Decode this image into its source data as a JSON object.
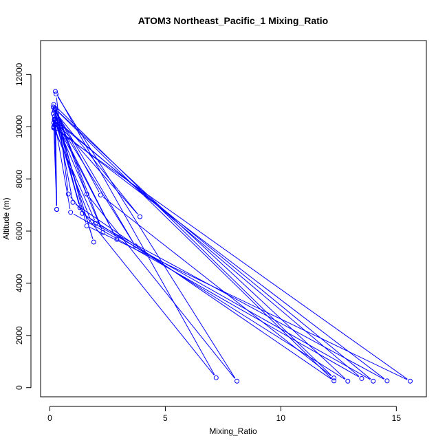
{
  "chart_data": {
    "type": "line",
    "title": "ATOM3 Northeast_Pacific_1 Mixing_Ratio",
    "xlabel": "Mixing_Ratio",
    "ylabel": "Altitude (m)",
    "xlim": [
      -0.4,
      16.3
    ],
    "ylim": [
      -350,
      13300
    ],
    "x_ticks": [
      0,
      5,
      10,
      15
    ],
    "y_ticks": [
      0,
      2000,
      4000,
      6000,
      8000,
      10000,
      12000
    ],
    "grid": false,
    "color": "#0000ff",
    "series": [
      {
        "x": [
          0.24,
          0.27,
          0.17,
          0.15,
          0.22,
          0.21,
          0.2,
          0.18,
          0.17,
          0.25,
          0.3,
          0.25,
          0.15,
          0.2,
          0.27,
          0.22,
          0.15,
          0.2,
          0.22,
          0.17,
          0.25,
          0.3,
          0.2,
          0.22,
          0.18,
          0.17,
          0.24
        ],
        "y": [
          11350,
          11250,
          10850,
          10750,
          10700,
          10300,
          10250,
          10000,
          9950,
          10700,
          10100,
          10300,
          10750,
          10600,
          10200,
          10650,
          10500,
          10400,
          10050,
          10000,
          10200,
          6830,
          10280,
          10100,
          9980,
          10150,
          10080
        ]
      },
      {
        "x": [
          7.2,
          8.1,
          12.3,
          12.3,
          12.9,
          13.5,
          14.0,
          14.6,
          15.6
        ],
        "y": [
          380,
          250,
          370,
          260,
          250,
          350,
          250,
          260,
          250
        ]
      },
      {
        "x": [
          0.8,
          1.6,
          2.2,
          1.0,
          1.4,
          0.9,
          1.8,
          2.0,
          1.6,
          2.3,
          2.9,
          3.7,
          1.9,
          3.9,
          1.3,
          0.3
        ],
        "y": [
          7420,
          7420,
          7380,
          7100,
          6680,
          6720,
          6350,
          6300,
          6200,
          5950,
          5680,
          5430,
          5580,
          6550,
          6900,
          6830
        ]
      }
    ]
  }
}
